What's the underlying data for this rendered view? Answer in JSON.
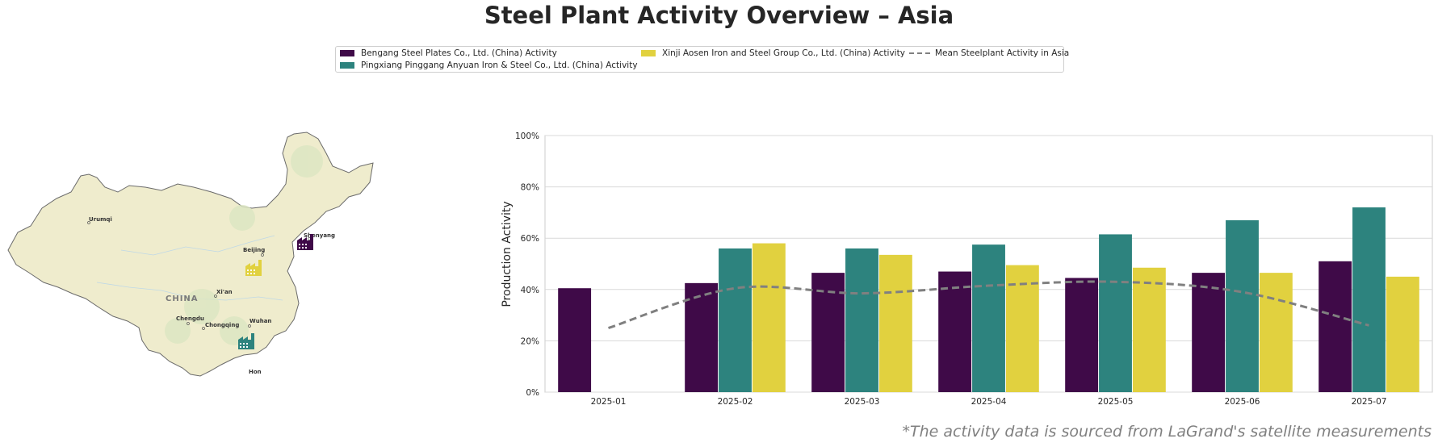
{
  "title": "Steel Plant Activity Overview – Asia",
  "footnote": "*The activity data is sourced from LaGrand's satellite measurements",
  "legend": [
    {
      "label": "Bengang Steel Plates Co., Ltd. (China) Activity",
      "color": "#3f0a48",
      "kind": "bar"
    },
    {
      "label": "Pingxiang Pinggang Anyuan Iron & Steel Co., Ltd. (China) Activity",
      "color": "#2d837e",
      "kind": "bar"
    },
    {
      "label": "Xinji Aosen Iron and Steel Group Co., Ltd. (China) Activity",
      "color": "#e1d13f",
      "kind": "bar"
    },
    {
      "label": "Mean Steelplant Activity in Asia",
      "color": "#808080",
      "kind": "line"
    }
  ],
  "map": {
    "country_label": "CHINA",
    "cities": [
      "Urumqi",
      "Beijing",
      "Shenyang",
      "Xi'an",
      "Chengdu",
      "Chongqing",
      "Wuhan",
      "Hon"
    ],
    "plant_icons": [
      {
        "name": "Bengang Steel Plates",
        "color": "#3f0a48"
      },
      {
        "name": "Xinji Aosen Iron and Steel",
        "color": "#e1d13f"
      },
      {
        "name": "Pingxiang Pinggang Anyuan",
        "color": "#2d837e"
      }
    ],
    "land_color": "#efeccd",
    "border_color": "#6b6b6b"
  },
  "chart_data": {
    "type": "bar",
    "categories": [
      "2025-01",
      "2025-02",
      "2025-03",
      "2025-04",
      "2025-05",
      "2025-06",
      "2025-07"
    ],
    "series": [
      {
        "name": "Bengang Steel Plates Co., Ltd. (China) Activity",
        "color": "#3f0a48",
        "values": [
          40.5,
          42.5,
          46.5,
          47,
          44.5,
          46.5,
          51
        ]
      },
      {
        "name": "Pingxiang Pinggang Anyuan Iron & Steel Co., Ltd. (China) Activity",
        "color": "#2d837e",
        "values": [
          null,
          56,
          56,
          57.5,
          61.5,
          67,
          72
        ]
      },
      {
        "name": "Xinji Aosen Iron and Steel Group Co., Ltd. (China) Activity",
        "color": "#e1d13f",
        "values": [
          null,
          58,
          53.5,
          49.5,
          48.5,
          46.5,
          45
        ]
      }
    ],
    "line": {
      "name": "Mean Steelplant Activity in Asia",
      "color": "#808080",
      "style": "dashed",
      "values": [
        25,
        40.5,
        38.5,
        41.5,
        43,
        39,
        26
      ]
    },
    "ylabel": "Production Activity",
    "xlabel": "",
    "ylim": [
      0,
      100
    ],
    "yticks": [
      "0%",
      "20%",
      "40%",
      "60%",
      "80%",
      "100%"
    ],
    "grid": true
  }
}
